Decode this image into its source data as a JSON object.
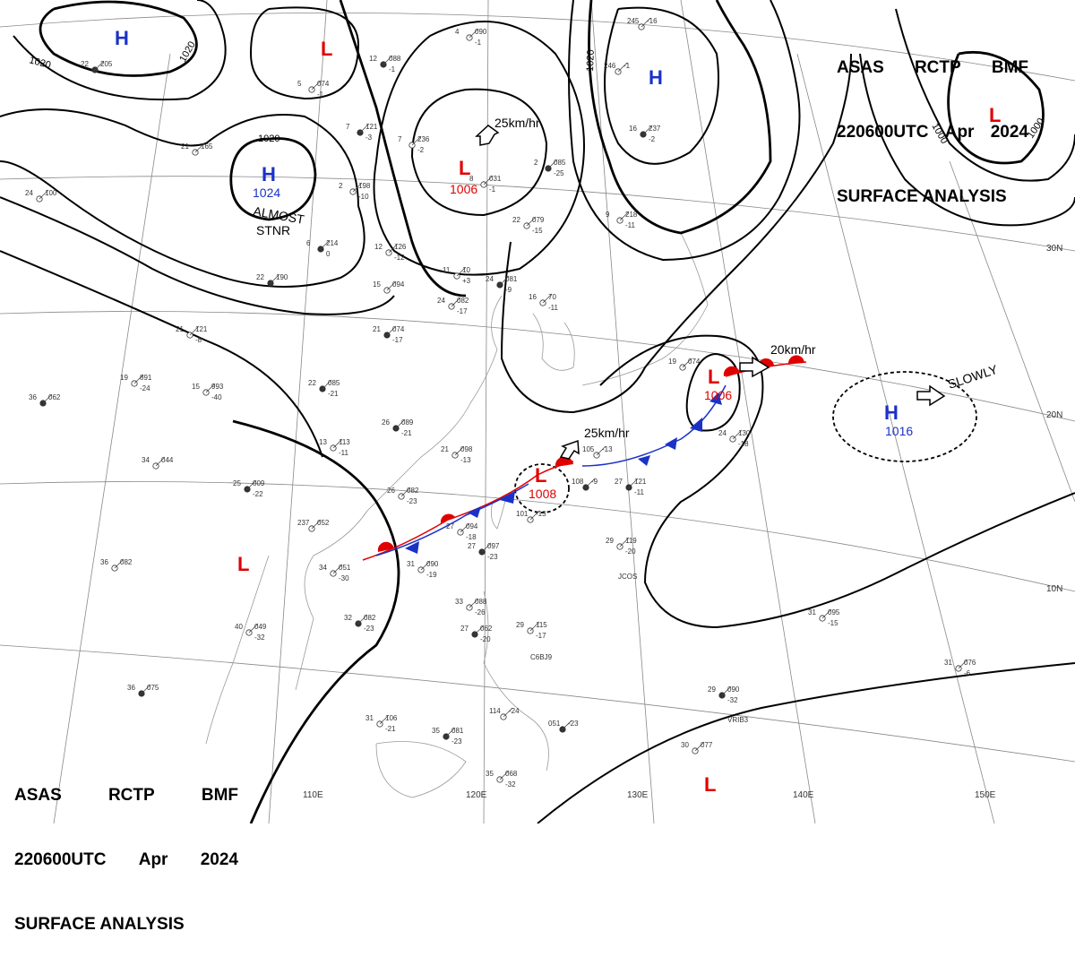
{
  "header": {
    "title_line1": [
      "ASAS",
      "RCTP",
      "BMF"
    ],
    "title_line2": [
      "220600UTC",
      "Apr",
      "2024"
    ],
    "title_line3": "SURFACE ANALYSIS"
  },
  "colors": {
    "isobar": "#000000",
    "high": "#1a32c8",
    "low": "#e00000",
    "grid": "#888888",
    "coast": "#9a9a9a",
    "warm_front": "#e00000",
    "cold_front": "#1a32c8"
  },
  "longitude_labels": [
    "110E",
    "120E",
    "130E",
    "140E",
    "150E"
  ],
  "latitude_labels": [
    "30N",
    "20N",
    "10N"
  ],
  "pressure_centers": [
    {
      "type": "H",
      "value": ""
    },
    {
      "type": "L",
      "value": ""
    },
    {
      "type": "H",
      "value": "1024"
    },
    {
      "type": "L",
      "value": "1006"
    },
    {
      "type": "H",
      "value": ""
    },
    {
      "type": "L",
      "value": ""
    },
    {
      "type": "L",
      "value": "1006"
    },
    {
      "type": "L",
      "value": "1008"
    },
    {
      "type": "H",
      "value": "1016"
    },
    {
      "type": "L",
      "value": ""
    },
    {
      "type": "L",
      "value": ""
    }
  ],
  "isobar_labels": [
    "1020",
    "1020",
    "1020",
    "1020",
    "1000",
    "1000"
  ],
  "movements": [
    "25km/hr",
    "20km/hr",
    "25km/hr",
    "SLOWLY"
  ],
  "annotations": [
    "ALMOST",
    "STNR"
  ],
  "stations": [
    {
      "t": "12",
      "p": "088",
      "d": "-1"
    },
    {
      "t": "4",
      "p": "090",
      "d": "-1"
    },
    {
      "t": "5",
      "p": "074",
      "d": "-1"
    },
    {
      "t": "7",
      "p": "121",
      "d": "-3"
    },
    {
      "t": "21",
      "p": "165",
      "d": ""
    },
    {
      "t": "2",
      "p": "198",
      "d": "-10"
    },
    {
      "t": "6",
      "p": "214",
      "d": "0"
    },
    {
      "t": "12",
      "p": "126",
      "d": "-12"
    },
    {
      "t": "15",
      "p": "094",
      "d": ""
    },
    {
      "t": "21",
      "p": "074",
      "d": "-17"
    },
    {
      "t": "24",
      "p": "082",
      "d": "-17"
    },
    {
      "t": "11",
      "p": "10",
      "d": "+3"
    },
    {
      "t": "24",
      "p": "081",
      "d": "-9"
    },
    {
      "t": "16",
      "p": "70",
      "d": "-11"
    },
    {
      "t": "22",
      "p": "079",
      "d": "-15"
    },
    {
      "t": "2",
      "p": "085",
      "d": "-25"
    },
    {
      "t": "8",
      "p": "031",
      "d": "-1"
    },
    {
      "t": "9",
      "p": "218",
      "d": "-11"
    },
    {
      "t": "22",
      "p": "085",
      "d": "-21"
    },
    {
      "t": "15",
      "p": "993",
      "d": "-40"
    },
    {
      "t": "19",
      "p": "891",
      "d": "-24"
    },
    {
      "t": "26",
      "p": "089",
      "d": "-21"
    },
    {
      "t": "21",
      "p": "098",
      "d": "-13"
    },
    {
      "t": "13",
      "p": "113",
      "d": "-11"
    },
    {
      "t": "25",
      "p": "009",
      "d": "-22"
    },
    {
      "t": "26",
      "p": "082",
      "d": "-23"
    },
    {
      "t": "27",
      "p": "094",
      "d": "-18"
    },
    {
      "t": "27",
      "p": "097",
      "d": "-23"
    },
    {
      "t": "31",
      "p": "090",
      "d": "-19"
    },
    {
      "t": "34",
      "p": "051",
      "d": "-30"
    },
    {
      "t": "32",
      "p": "082",
      "d": "-23"
    },
    {
      "t": "40",
      "p": "049",
      "d": "-32"
    },
    {
      "t": "33",
      "p": "088",
      "d": "-26"
    },
    {
      "t": "27",
      "p": "062",
      "d": "-20"
    },
    {
      "t": "29",
      "p": "115",
      "d": "-17"
    },
    {
      "t": "31",
      "p": "106",
      "d": "-21"
    },
    {
      "t": "35",
      "p": "081",
      "d": "-23"
    },
    {
      "t": "35",
      "p": "068",
      "d": "-32"
    },
    {
      "t": "29",
      "p": "119",
      "d": "-20"
    },
    {
      "t": "27",
      "p": "121",
      "d": "-11"
    },
    {
      "t": "24",
      "p": "130",
      "d": "-18"
    },
    {
      "t": "31",
      "p": "095",
      "d": "-15"
    },
    {
      "t": "29",
      "p": "090",
      "d": "-32"
    },
    {
      "t": "30",
      "p": "077",
      "d": ""
    },
    {
      "t": "31",
      "p": "076",
      "d": "-6"
    },
    {
      "t": "36",
      "p": "062",
      "d": ""
    },
    {
      "t": "34",
      "p": "044",
      "d": ""
    },
    {
      "t": "36",
      "p": "082",
      "d": ""
    },
    {
      "t": "36",
      "p": "075",
      "d": ""
    },
    {
      "t": "21",
      "p": "121",
      "d": "-8"
    },
    {
      "t": "24",
      "p": "100",
      "d": ""
    },
    {
      "t": "22",
      "p": "190",
      "d": ""
    },
    {
      "t": "237",
      "p": "052",
      "d": ""
    },
    {
      "t": "101",
      "p": "-13",
      "d": ""
    },
    {
      "t": "108",
      "p": "-9",
      "d": ""
    },
    {
      "t": "105",
      "p": "-13",
      "d": ""
    },
    {
      "t": "19",
      "p": "074",
      "d": ""
    },
    {
      "t": "16",
      "p": "237",
      "d": "-2"
    },
    {
      "t": "246",
      "p": "-1",
      "d": ""
    },
    {
      "t": "245",
      "p": "-16",
      "d": ""
    },
    {
      "t": "22",
      "p": "205",
      "d": ""
    },
    {
      "t": "7",
      "p": "236",
      "d": "-2"
    },
    {
      "t": "114",
      "p": "-24",
      "d": ""
    },
    {
      "t": "051",
      "p": "-23",
      "d": ""
    }
  ],
  "station_ids": [
    "JCOS",
    "C6BJ9",
    "VRIB3"
  ]
}
